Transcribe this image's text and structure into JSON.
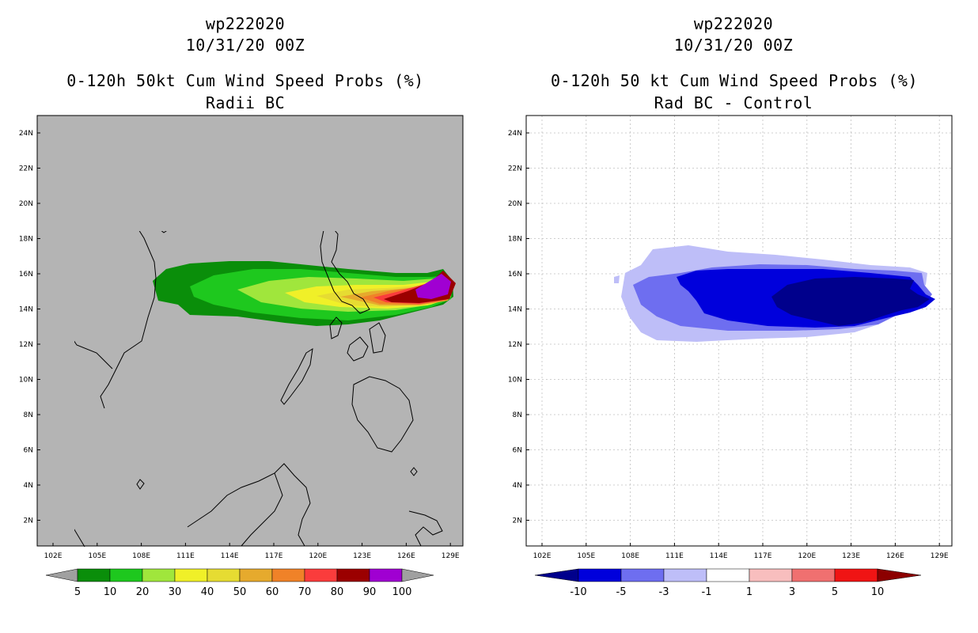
{
  "left_panel": {
    "title_line1": "wp222020",
    "title_line2": "10/31/20 00Z",
    "title_line3": "0-120h 50kt Cum Wind Speed Probs (%)",
    "title_line4": "Radii BC",
    "colorbar": {
      "labels": [
        "5",
        "10",
        "20",
        "30",
        "40",
        "50",
        "60",
        "70",
        "80",
        "90",
        "100"
      ],
      "colors": [
        "#0a8e0a",
        "#1ec81e",
        "#a0e63c",
        "#f0f028",
        "#e6dc32",
        "#e6aa2d",
        "#f08228",
        "#fa3c3c",
        "#9b0000",
        "#a000d2"
      ],
      "below_color": "#a0a0a0",
      "above_color": "#a0a0a0"
    }
  },
  "right_panel": {
    "title_line1": "wp222020",
    "title_line2": "10/31/20 00Z",
    "title_line3": "0-120h 50 kt Cum Wind Speed Probs (%)",
    "title_line4": "Rad BC - Control",
    "colorbar": {
      "labels": [
        "-10",
        "-5",
        "-3",
        "-1",
        "1",
        "3",
        "5",
        "10"
      ],
      "colors": [
        "#0000dc",
        "#6e6ef0",
        "#bebef8",
        "#ffffff",
        "#f8bebe",
        "#f07070",
        "#f01414"
      ],
      "below_color": "#00008c",
      "above_color": "#8c0000"
    }
  },
  "axes": {
    "lat_labels": [
      "24N",
      "22N",
      "20N",
      "18N",
      "16N",
      "14N",
      "12N",
      "10N",
      "8N",
      "6N",
      "4N",
      "2N"
    ],
    "lon_labels": [
      "102E",
      "105E",
      "108E",
      "111E",
      "114E",
      "117E",
      "120E",
      "123E",
      "126E",
      "129E"
    ]
  },
  "colors": {
    "map_bg_left": "#b4b4b4",
    "map_bg_right": "#ffffff"
  }
}
